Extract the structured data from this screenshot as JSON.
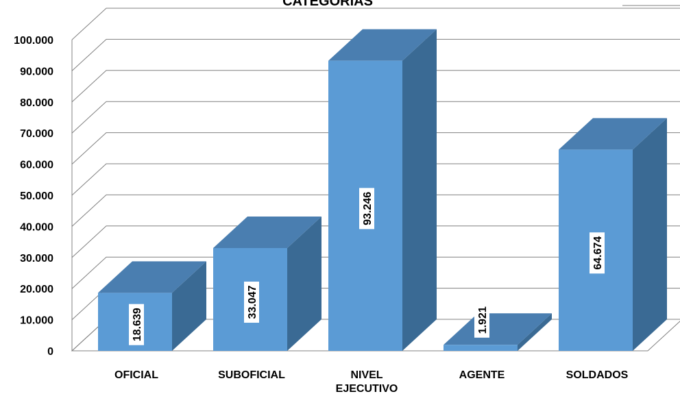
{
  "chart_data": {
    "type": "bar",
    "title": "CATEGORIAS",
    "categories": [
      "OFICIAL",
      "SUBOFICIAL",
      "NIVEL EJECUTIVO",
      "AGENTE",
      "SOLDADOS"
    ],
    "category_lines": [
      [
        "OFICIAL"
      ],
      [
        "SUBOFICIAL"
      ],
      [
        "NIVEL",
        "EJECUTIVO"
      ],
      [
        "AGENTE"
      ],
      [
        "SOLDADOS"
      ]
    ],
    "values": [
      18639,
      33047,
      93246,
      1921,
      64674
    ],
    "value_labels": [
      "18.639",
      "33.047",
      "93.246",
      "1.921",
      "64.674"
    ],
    "ylim": [
      0,
      100000
    ],
    "yticks": [
      0,
      10000,
      20000,
      30000,
      40000,
      50000,
      60000,
      70000,
      80000,
      90000,
      100000
    ],
    "ytick_labels": [
      "0",
      "10.000",
      "20.000",
      "30.000",
      "40.000",
      "50.000",
      "60.000",
      "70.000",
      "80.000",
      "90.000",
      "100.000"
    ],
    "style": "3d-column",
    "grid": true,
    "colors": {
      "front": "#5b9bd5",
      "side": "#3a6a94",
      "top": "#4a7eb0",
      "grid": "#808080",
      "label_bg": "#ffffff"
    }
  }
}
